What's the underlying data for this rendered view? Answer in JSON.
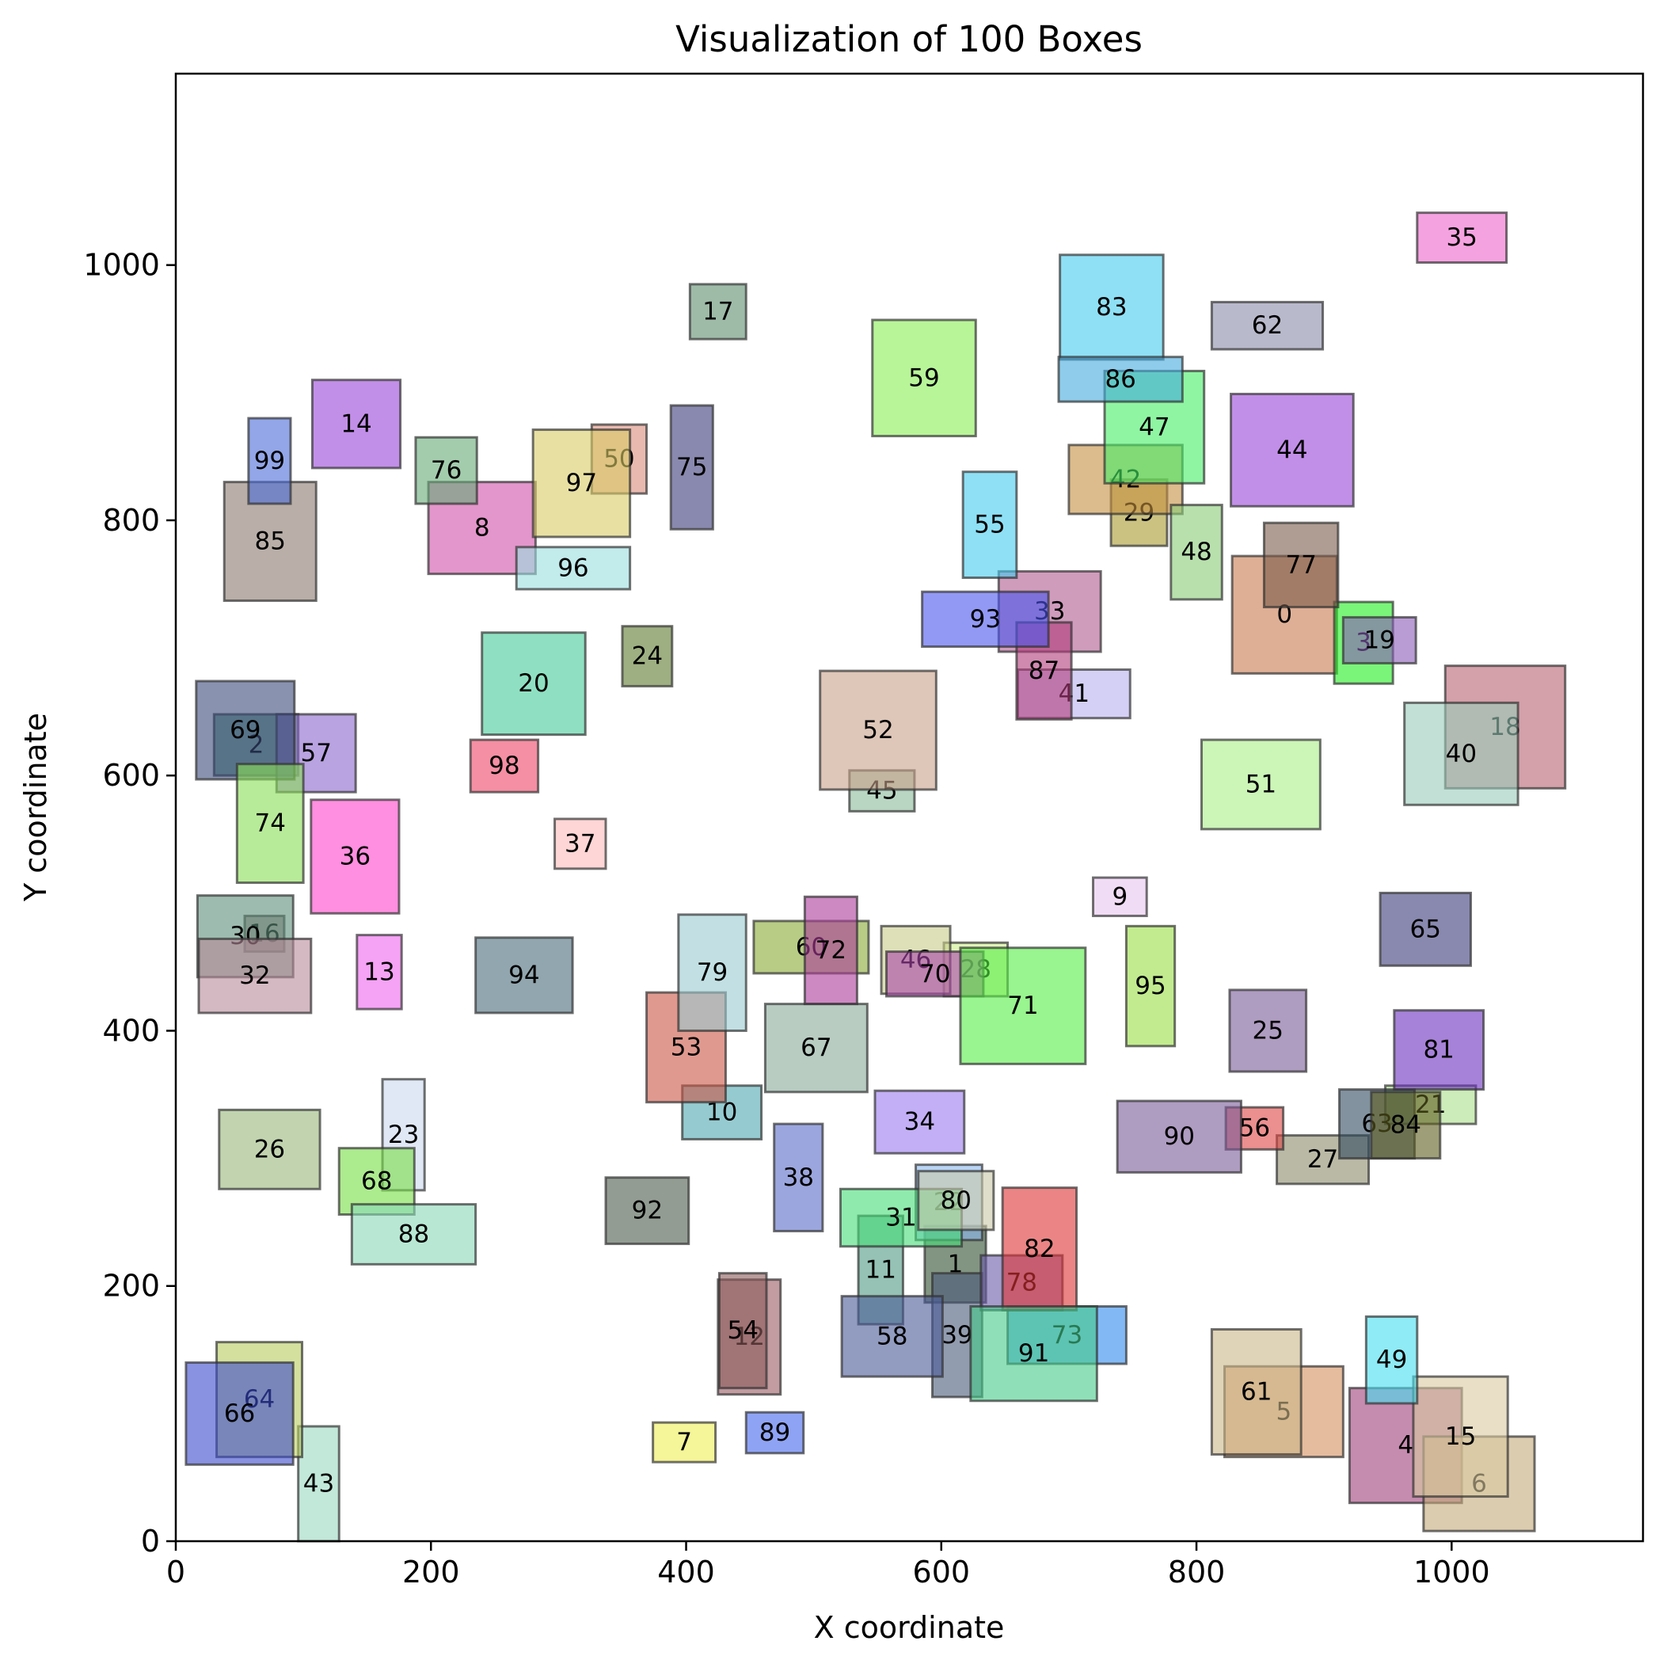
{
  "chart_data": {
    "type": "box-map",
    "title": "Visualization of 100 Boxes",
    "xlabel": "X coordinate",
    "ylabel": "Y coordinate",
    "xlim": [
      0,
      1150
    ],
    "ylim": [
      0,
      1150
    ],
    "xticks": [
      0,
      200,
      400,
      600,
      800,
      1000
    ],
    "yticks": [
      0,
      200,
      400,
      600,
      800,
      1000
    ],
    "grid": false,
    "boxes": [
      {
        "id": "0",
        "x1": 828,
        "y1": 680,
        "x2": 910,
        "y2": 772,
        "color": "#c87a4f"
      },
      {
        "id": "1",
        "x1": 587,
        "y1": 187,
        "x2": 635,
        "y2": 247,
        "color": "#2f4f2f"
      },
      {
        "id": "2",
        "x1": 30,
        "y1": 600,
        "x2": 96,
        "y2": 648,
        "color": "#2e7d5e"
      },
      {
        "id": "3",
        "x1": 908,
        "y1": 672,
        "x2": 954,
        "y2": 736,
        "color": "#22ee22"
      },
      {
        "id": "4",
        "x1": 920,
        "y1": 30,
        "x2": 1008,
        "y2": 120,
        "color": "#a0407a"
      },
      {
        "id": "5",
        "x1": 822,
        "y1": 66,
        "x2": 915,
        "y2": 137,
        "color": "#d48f5c"
      },
      {
        "id": "6",
        "x1": 978,
        "y1": 8,
        "x2": 1065,
        "y2": 82,
        "color": "#c4aa7a"
      },
      {
        "id": "7",
        "x1": 374,
        "y1": 62,
        "x2": 423,
        "y2": 93,
        "color": "#eeee55"
      },
      {
        "id": "8",
        "x1": 198,
        "y1": 758,
        "x2": 282,
        "y2": 830,
        "color": "#d050a8"
      },
      {
        "id": "9",
        "x1": 719,
        "y1": 490,
        "x2": 761,
        "y2": 520,
        "color": "#e8c4ee"
      },
      {
        "id": "10",
        "x1": 397,
        "y1": 315,
        "x2": 459,
        "y2": 357,
        "color": "#4ea8b0"
      },
      {
        "id": "11",
        "x1": 535,
        "y1": 170,
        "x2": 570,
        "y2": 255,
        "color": "#4e9a84"
      },
      {
        "id": "12",
        "x1": 425,
        "y1": 115,
        "x2": 474,
        "y2": 205,
        "color": "#9a5a60"
      },
      {
        "id": "13",
        "x1": 142,
        "y1": 417,
        "x2": 177,
        "y2": 475,
        "color": "#ee66ee"
      },
      {
        "id": "14",
        "x1": 107,
        "y1": 841,
        "x2": 176,
        "y2": 910,
        "color": "#9a44d8"
      },
      {
        "id": "15",
        "x1": 970,
        "y1": 35,
        "x2": 1044,
        "y2": 129,
        "color": "#d8caa0"
      },
      {
        "id": "16",
        "x1": 54,
        "y1": 462,
        "x2": 85,
        "y2": 490,
        "color": "#8a6a6a"
      },
      {
        "id": "17",
        "x1": 403,
        "y1": 942,
        "x2": 447,
        "y2": 985,
        "color": "#5e8e6e"
      },
      {
        "id": "18",
        "x1": 995,
        "y1": 590,
        "x2": 1089,
        "y2": 686,
        "color": "#b86070"
      },
      {
        "id": "19",
        "x1": 915,
        "y1": 688,
        "x2": 972,
        "y2": 724,
        "color": "#8a5ab8"
      },
      {
        "id": "20",
        "x1": 240,
        "y1": 632,
        "x2": 321,
        "y2": 712,
        "color": "#44cc99"
      },
      {
        "id": "21",
        "x1": 948,
        "y1": 327,
        "x2": 1019,
        "y2": 357,
        "color": "#aae08a"
      },
      {
        "id": "22",
        "x1": 580,
        "y1": 236,
        "x2": 632,
        "y2": 295,
        "color": "#8ab8ee"
      },
      {
        "id": "23",
        "x1": 162,
        "y1": 275,
        "x2": 195,
        "y2": 362,
        "color": "#ccd8ee"
      },
      {
        "id": "24",
        "x1": 350,
        "y1": 670,
        "x2": 389,
        "y2": 717,
        "color": "#5e7a2e"
      },
      {
        "id": "25",
        "x1": 826,
        "y1": 368,
        "x2": 886,
        "y2": 432,
        "color": "#7a5a98"
      },
      {
        "id": "26",
        "x1": 34,
        "y1": 276,
        "x2": 113,
        "y2": 338,
        "color": "#98b87a"
      },
      {
        "id": "27",
        "x1": 863,
        "y1": 280,
        "x2": 935,
        "y2": 318,
        "color": "#8a8a6a"
      },
      {
        "id": "28",
        "x1": 602,
        "y1": 427,
        "x2": 652,
        "y2": 469,
        "color": "#ccee88"
      },
      {
        "id": "29",
        "x1": 733,
        "y1": 780,
        "x2": 777,
        "y2": 832,
        "color": "#a89a2e"
      },
      {
        "id": "30",
        "x1": 17,
        "y1": 442,
        "x2": 92,
        "y2": 506,
        "color": "#5e8e7a"
      },
      {
        "id": "31",
        "x1": 521,
        "y1": 231,
        "x2": 616,
        "y2": 276,
        "color": "#44dd77"
      },
      {
        "id": "32",
        "x1": 18,
        "y1": 414,
        "x2": 106,
        "y2": 472,
        "color": "#b88a9a"
      },
      {
        "id": "33",
        "x1": 645,
        "y1": 697,
        "x2": 725,
        "y2": 760,
        "color": "#b05a90"
      },
      {
        "id": "34",
        "x1": 548,
        "y1": 304,
        "x2": 618,
        "y2": 353,
        "color": "#9a7aee"
      },
      {
        "id": "35",
        "x1": 973,
        "y1": 1002,
        "x2": 1043,
        "y2": 1041,
        "color": "#ee66cc"
      },
      {
        "id": "36",
        "x1": 106,
        "y1": 492,
        "x2": 175,
        "y2": 581,
        "color": "#ff44cc"
      },
      {
        "id": "37",
        "x1": 297,
        "y1": 527,
        "x2": 337,
        "y2": 566,
        "color": "#ffbbbb"
      },
      {
        "id": "38",
        "x1": 469,
        "y1": 243,
        "x2": 507,
        "y2": 327,
        "color": "#5a6ac8"
      },
      {
        "id": "39",
        "x1": 593,
        "y1": 113,
        "x2": 632,
        "y2": 210,
        "color": "#4a5a7a"
      },
      {
        "id": "40",
        "x1": 963,
        "y1": 577,
        "x2": 1052,
        "y2": 657,
        "color": "#99ccbb"
      },
      {
        "id": "41",
        "x1": 660,
        "y1": 645,
        "x2": 748,
        "y2": 683,
        "color": "#b8b0ee"
      },
      {
        "id": "42",
        "x1": 700,
        "y1": 805,
        "x2": 789,
        "y2": 859,
        "color": "#c49040"
      },
      {
        "id": "43",
        "x1": 96,
        "y1": 0,
        "x2": 128,
        "y2": 90,
        "color": "#99d8c0"
      },
      {
        "id": "44",
        "x1": 827,
        "y1": 811,
        "x2": 923,
        "y2": 899,
        "color": "#9a44d8"
      },
      {
        "id": "45",
        "x1": 528,
        "y1": 572,
        "x2": 579,
        "y2": 604,
        "color": "#88bb99"
      },
      {
        "id": "46",
        "x1": 553,
        "y1": 429,
        "x2": 607,
        "y2": 482,
        "color": "#c8cc88"
      },
      {
        "id": "47",
        "x1": 728,
        "y1": 829,
        "x2": 806,
        "y2": 917,
        "color": "#44ee66"
      },
      {
        "id": "48",
        "x1": 780,
        "y1": 738,
        "x2": 820,
        "y2": 812,
        "color": "#88cc77"
      },
      {
        "id": "49",
        "x1": 933,
        "y1": 108,
        "x2": 973,
        "y2": 176,
        "color": "#44ddee"
      },
      {
        "id": "50",
        "x1": 326,
        "y1": 821,
        "x2": 369,
        "y2": 875,
        "color": "#d88a7a"
      },
      {
        "id": "51",
        "x1": 804,
        "y1": 558,
        "x2": 897,
        "y2": 628,
        "color": "#aaee88"
      },
      {
        "id": "52",
        "x1": 505,
        "y1": 589,
        "x2": 596,
        "y2": 682,
        "color": "#c8a088"
      },
      {
        "id": "53",
        "x1": 369,
        "y1": 344,
        "x2": 431,
        "y2": 430,
        "color": "#cc5544"
      },
      {
        "id": "54",
        "x1": 426,
        "y1": 120,
        "x2": 463,
        "y2": 210,
        "color": "#8a5a5a"
      },
      {
        "id": "55",
        "x1": 617,
        "y1": 755,
        "x2": 659,
        "y2": 838,
        "color": "#44ccee"
      },
      {
        "id": "56",
        "x1": 823,
        "y1": 307,
        "x2": 868,
        "y2": 340,
        "color": "#dd4444"
      },
      {
        "id": "57",
        "x1": 79,
        "y1": 587,
        "x2": 141,
        "y2": 648,
        "color": "#8a66cc"
      },
      {
        "id": "58",
        "x1": 522,
        "y1": 129,
        "x2": 601,
        "y2": 192,
        "color": "#4a5a98"
      },
      {
        "id": "59",
        "x1": 546,
        "y1": 866,
        "x2": 627,
        "y2": 957,
        "color": "#88ee55"
      },
      {
        "id": "60",
        "x1": 453,
        "y1": 445,
        "x2": 543,
        "y2": 486,
        "color": "#88aa33"
      },
      {
        "id": "61",
        "x1": 812,
        "y1": 68,
        "x2": 882,
        "y2": 166,
        "color": "#ccb888"
      },
      {
        "id": "62",
        "x1": 812,
        "y1": 934,
        "x2": 899,
        "y2": 971,
        "color": "#8a8aaa"
      },
      {
        "id": "63",
        "x1": 912,
        "y1": 300,
        "x2": 971,
        "y2": 354,
        "color": "#2e4a5e"
      },
      {
        "id": "64",
        "x1": 32,
        "y1": 66,
        "x2": 99,
        "y2": 156,
        "color": "#b8cc5e"
      },
      {
        "id": "65",
        "x1": 944,
        "y1": 451,
        "x2": 1015,
        "y2": 508,
        "color": "#3a3a7a"
      },
      {
        "id": "66",
        "x1": 8,
        "y1": 60,
        "x2": 92,
        "y2": 140,
        "color": "#3a4acc"
      },
      {
        "id": "67",
        "x1": 462,
        "y1": 352,
        "x2": 542,
        "y2": 421,
        "color": "#88aa99"
      },
      {
        "id": "68",
        "x1": 128,
        "y1": 256,
        "x2": 187,
        "y2": 308,
        "color": "#77dd44"
      },
      {
        "id": "69",
        "x1": 16,
        "y1": 597,
        "x2": 93,
        "y2": 674,
        "color": "#3a4a7a"
      },
      {
        "id": "70",
        "x1": 557,
        "y1": 427,
        "x2": 633,
        "y2": 462,
        "color": "#aa44aa"
      },
      {
        "id": "71",
        "x1": 615,
        "y1": 374,
        "x2": 713,
        "y2": 465,
        "color": "#55ee44"
      },
      {
        "id": "72",
        "x1": 493,
        "y1": 421,
        "x2": 534,
        "y2": 505,
        "color": "#aa3a9a"
      },
      {
        "id": "73",
        "x1": 652,
        "y1": 139,
        "x2": 745,
        "y2": 184,
        "color": "#2e8aee"
      },
      {
        "id": "74",
        "x1": 48,
        "y1": 516,
        "x2": 100,
        "y2": 609,
        "color": "#88dd55"
      },
      {
        "id": "75",
        "x1": 388,
        "y1": 793,
        "x2": 421,
        "y2": 890,
        "color": "#3a3a7a"
      },
      {
        "id": "76",
        "x1": 188,
        "y1": 813,
        "x2": 236,
        "y2": 865,
        "color": "#66aa77"
      },
      {
        "id": "77",
        "x1": 853,
        "y1": 732,
        "x2": 911,
        "y2": 798,
        "color": "#7a5a4a"
      },
      {
        "id": "78",
        "x1": 631,
        "y1": 181,
        "x2": 695,
        "y2": 224,
        "color": "#6a5aaa"
      },
      {
        "id": "79",
        "x1": 394,
        "y1": 400,
        "x2": 447,
        "y2": 491,
        "color": "#99ccd0"
      },
      {
        "id": "80",
        "x1": 582,
        "y1": 244,
        "x2": 641,
        "y2": 290,
        "color": "#c8c8a8"
      },
      {
        "id": "81",
        "x1": 955,
        "y1": 354,
        "x2": 1025,
        "y2": 416,
        "color": "#6a2ebe"
      },
      {
        "id": "82",
        "x1": 648,
        "y1": 181,
        "x2": 706,
        "y2": 277,
        "color": "#dd3333"
      },
      {
        "id": "83",
        "x1": 693,
        "y1": 926,
        "x2": 774,
        "y2": 1008,
        "color": "#44ccee"
      },
      {
        "id": "84",
        "x1": 937,
        "y1": 300,
        "x2": 991,
        "y2": 352,
        "color": "#5e5e1e"
      },
      {
        "id": "85",
        "x1": 38,
        "y1": 737,
        "x2": 110,
        "y2": 830,
        "color": "#8a7a6e"
      },
      {
        "id": "86",
        "x1": 692,
        "y1": 893,
        "x2": 789,
        "y2": 928,
        "color": "#44aadd"
      },
      {
        "id": "87",
        "x1": 659,
        "y1": 644,
        "x2": 702,
        "y2": 720,
        "color": "#b03a7a"
      },
      {
        "id": "88",
        "x1": 138,
        "y1": 217,
        "x2": 235,
        "y2": 264,
        "color": "#88d8b8"
      },
      {
        "id": "89",
        "x1": 447,
        "y1": 69,
        "x2": 492,
        "y2": 101,
        "color": "#4466ee"
      },
      {
        "id": "90",
        "x1": 738,
        "y1": 289,
        "x2": 835,
        "y2": 345,
        "color": "#7a5a98"
      },
      {
        "id": "91",
        "x1": 623,
        "y1": 110,
        "x2": 722,
        "y2": 184,
        "color": "#44cc88"
      },
      {
        "id": "92",
        "x1": 337,
        "y1": 233,
        "x2": 402,
        "y2": 285,
        "color": "#4a5a4a"
      },
      {
        "id": "93",
        "x1": 585,
        "y1": 701,
        "x2": 684,
        "y2": 744,
        "color": "#4a55ee"
      },
      {
        "id": "94",
        "x1": 235,
        "y1": 414,
        "x2": 311,
        "y2": 473,
        "color": "#4a6a7a"
      },
      {
        "id": "95",
        "x1": 745,
        "y1": 388,
        "x2": 783,
        "y2": 482,
        "color": "#99dd44"
      },
      {
        "id": "96",
        "x1": 267,
        "y1": 746,
        "x2": 356,
        "y2": 779,
        "color": "#99dde0"
      },
      {
        "id": "97",
        "x1": 280,
        "y1": 787,
        "x2": 356,
        "y2": 871,
        "color": "#d8cc66"
      },
      {
        "id": "98",
        "x1": 231,
        "y1": 587,
        "x2": 284,
        "y2": 628,
        "color": "#ee4466"
      },
      {
        "id": "99",
        "x1": 57,
        "y1": 813,
        "x2": 90,
        "y2": 880,
        "color": "#4a6ad8"
      }
    ]
  }
}
